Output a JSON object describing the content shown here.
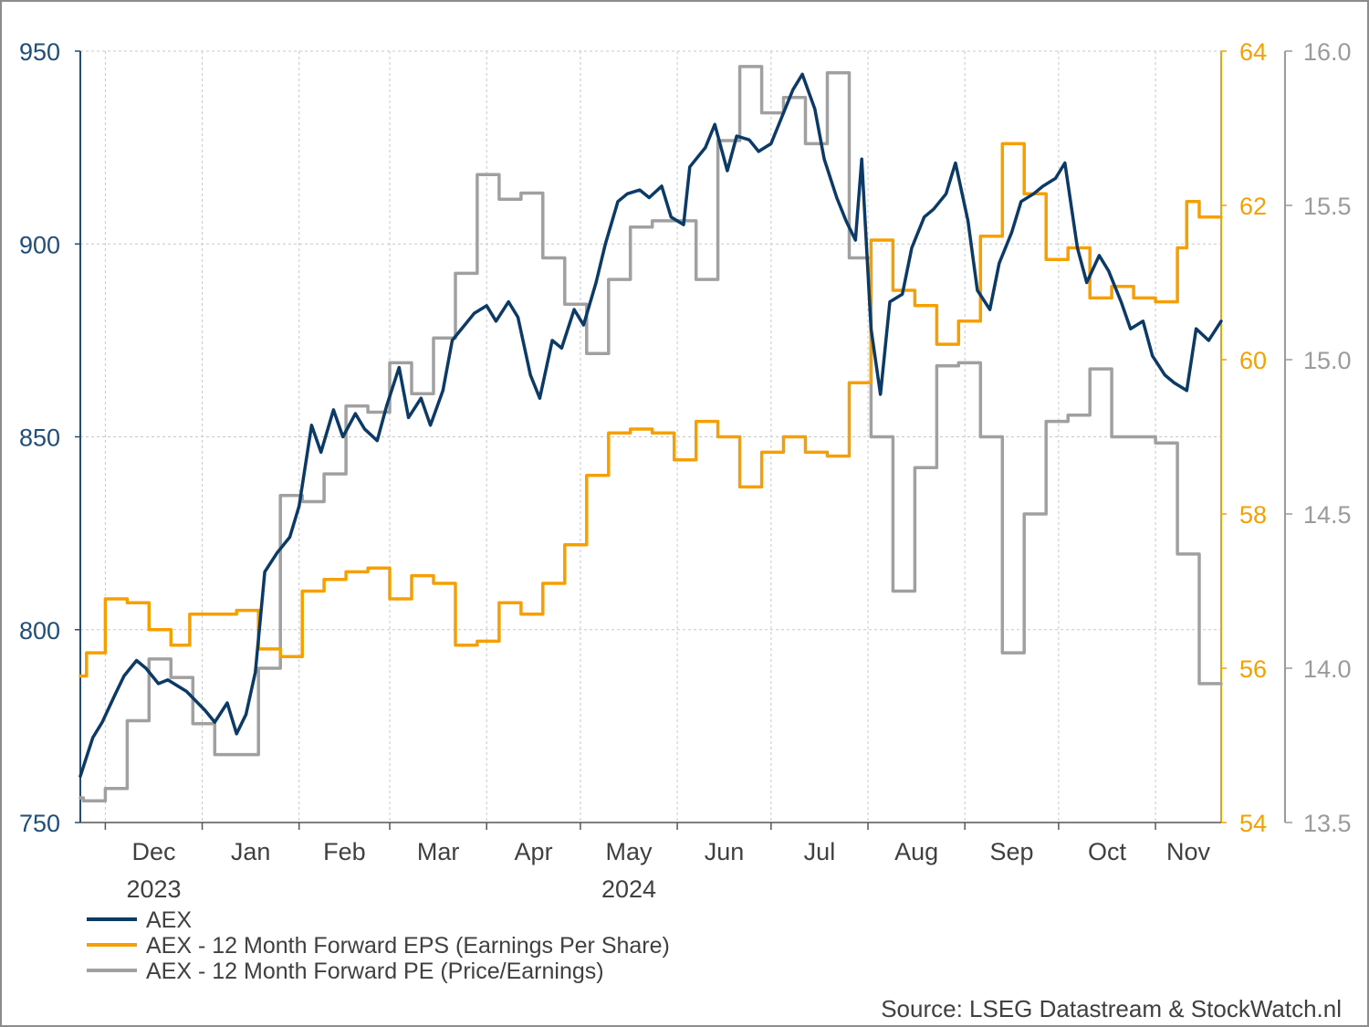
{
  "chart_data": {
    "type": "line",
    "x_start": "2023-11-23",
    "x_end": "2024-11-22",
    "month_ticks": [
      "Dec",
      "Jan",
      "Feb",
      "Mar",
      "Apr",
      "May",
      "Jun",
      "Jul",
      "Aug",
      "Sep",
      "Oct",
      "Nov"
    ],
    "year_labels": [
      "2023",
      "2024"
    ],
    "grid": true,
    "axes": {
      "left": {
        "ylim": [
          750,
          950
        ],
        "ticks": [
          "750",
          "800",
          "850",
          "900",
          "950"
        ],
        "color": "#1f4e79"
      },
      "right1": {
        "ylim": [
          54,
          64
        ],
        "ticks": [
          "54",
          "56",
          "58",
          "60",
          "62",
          "64"
        ],
        "color": "#f5a000"
      },
      "right2": {
        "ylim": [
          13.5,
          16.0
        ],
        "ticks": [
          "13.5",
          "14.0",
          "14.5",
          "15.0",
          "15.5",
          "16.0"
        ],
        "color": "#9b9b9b"
      }
    },
    "series": [
      {
        "name": "AEX",
        "axis": "left",
        "color": "#0b3a66",
        "points": [
          [
            "2023-11-23",
            762
          ],
          [
            "2023-11-27",
            772
          ],
          [
            "2023-11-30",
            776
          ],
          [
            "2023-12-04",
            783
          ],
          [
            "2023-12-07",
            788
          ],
          [
            "2023-12-11",
            792
          ],
          [
            "2023-12-14",
            790
          ],
          [
            "2023-12-18",
            786
          ],
          [
            "2023-12-21",
            787
          ],
          [
            "2023-12-27",
            784
          ],
          [
            "2024-01-02",
            779
          ],
          [
            "2024-01-05",
            776
          ],
          [
            "2024-01-09",
            781
          ],
          [
            "2024-01-12",
            773
          ],
          [
            "2024-01-15",
            778
          ],
          [
            "2024-01-18",
            789
          ],
          [
            "2024-01-21",
            815
          ],
          [
            "2024-01-25",
            820
          ],
          [
            "2024-01-29",
            824
          ],
          [
            "2024-02-01",
            832
          ],
          [
            "2024-02-05",
            853
          ],
          [
            "2024-02-08",
            846
          ],
          [
            "2024-02-12",
            857
          ],
          [
            "2024-02-15",
            850
          ],
          [
            "2024-02-19",
            856
          ],
          [
            "2024-02-22",
            852
          ],
          [
            "2024-02-26",
            849
          ],
          [
            "2024-02-29",
            858
          ],
          [
            "2024-03-04",
            868
          ],
          [
            "2024-03-07",
            855
          ],
          [
            "2024-03-11",
            860
          ],
          [
            "2024-03-14",
            853
          ],
          [
            "2024-03-18",
            862
          ],
          [
            "2024-03-21",
            875
          ],
          [
            "2024-03-25",
            879
          ],
          [
            "2024-03-28",
            882
          ],
          [
            "2024-04-01",
            884
          ],
          [
            "2024-04-04",
            880
          ],
          [
            "2024-04-08",
            885
          ],
          [
            "2024-04-11",
            881
          ],
          [
            "2024-04-15",
            866
          ],
          [
            "2024-04-18",
            860
          ],
          [
            "2024-04-22",
            875
          ],
          [
            "2024-04-25",
            873
          ],
          [
            "2024-04-29",
            883
          ],
          [
            "2024-05-02",
            879
          ],
          [
            "2024-05-06",
            890
          ],
          [
            "2024-05-09",
            900
          ],
          [
            "2024-05-13",
            911
          ],
          [
            "2024-05-16",
            913
          ],
          [
            "2024-05-20",
            914
          ],
          [
            "2024-05-23",
            912
          ],
          [
            "2024-05-27",
            915
          ],
          [
            "2024-05-30",
            907
          ],
          [
            "2024-06-03",
            905
          ],
          [
            "2024-06-05",
            920
          ],
          [
            "2024-06-10",
            925
          ],
          [
            "2024-06-13",
            931
          ],
          [
            "2024-06-17",
            919
          ],
          [
            "2024-06-20",
            928
          ],
          [
            "2024-06-24",
            927
          ],
          [
            "2024-06-27",
            924
          ],
          [
            "2024-07-01",
            926
          ],
          [
            "2024-07-04",
            932
          ],
          [
            "2024-07-08",
            940
          ],
          [
            "2024-07-11",
            944
          ],
          [
            "2024-07-15",
            935
          ],
          [
            "2024-07-18",
            922
          ],
          [
            "2024-07-22",
            912
          ],
          [
            "2024-07-25",
            906
          ],
          [
            "2024-07-28",
            901
          ],
          [
            "2024-07-30",
            922
          ],
          [
            "2024-08-02",
            878
          ],
          [
            "2024-08-05",
            861
          ],
          [
            "2024-08-08",
            885
          ],
          [
            "2024-08-12",
            887
          ],
          [
            "2024-08-15",
            899
          ],
          [
            "2024-08-19",
            907
          ],
          [
            "2024-08-22",
            909
          ],
          [
            "2024-08-26",
            913
          ],
          [
            "2024-08-29",
            921
          ],
          [
            "2024-09-02",
            906
          ],
          [
            "2024-09-05",
            888
          ],
          [
            "2024-09-09",
            883
          ],
          [
            "2024-09-12",
            895
          ],
          [
            "2024-09-16",
            903
          ],
          [
            "2024-09-19",
            911
          ],
          [
            "2024-09-23",
            913
          ],
          [
            "2024-09-26",
            915
          ],
          [
            "2024-09-30",
            917
          ],
          [
            "2024-10-03",
            921
          ],
          [
            "2024-10-07",
            899
          ],
          [
            "2024-10-10",
            890
          ],
          [
            "2024-10-14",
            897
          ],
          [
            "2024-10-17",
            893
          ],
          [
            "2024-10-21",
            885
          ],
          [
            "2024-10-24",
            878
          ],
          [
            "2024-10-28",
            880
          ],
          [
            "2024-10-31",
            871
          ],
          [
            "2024-11-04",
            866
          ],
          [
            "2024-11-07",
            864
          ],
          [
            "2024-11-11",
            862
          ],
          [
            "2024-11-14",
            878
          ],
          [
            "2024-11-18",
            875
          ],
          [
            "2024-11-22",
            880
          ]
        ]
      },
      {
        "name": "AEX - 12 Month Forward EPS (Earnings Per Share)",
        "axis": "right1",
        "color": "#f5a000",
        "step": true,
        "points": [
          [
            "2023-11-23",
            55.9
          ],
          [
            "2023-11-25",
            56.2
          ],
          [
            "2023-12-01",
            56.9
          ],
          [
            "2023-12-08",
            56.85
          ],
          [
            "2023-12-15",
            56.5
          ],
          [
            "2023-12-22",
            56.3
          ],
          [
            "2023-12-28",
            56.7
          ],
          [
            "2024-01-12",
            56.75
          ],
          [
            "2024-01-19",
            56.25
          ],
          [
            "2024-01-26",
            56.15
          ],
          [
            "2024-02-02",
            57.0
          ],
          [
            "2024-02-09",
            57.15
          ],
          [
            "2024-02-16",
            57.25
          ],
          [
            "2024-02-23",
            57.3
          ],
          [
            "2024-03-01",
            56.9
          ],
          [
            "2024-03-08",
            57.2
          ],
          [
            "2024-03-15",
            57.1
          ],
          [
            "2024-03-22",
            56.3
          ],
          [
            "2024-03-29",
            56.35
          ],
          [
            "2024-04-05",
            56.85
          ],
          [
            "2024-04-12",
            56.7
          ],
          [
            "2024-04-19",
            57.1
          ],
          [
            "2024-04-26",
            57.6
          ],
          [
            "2024-05-03",
            58.5
          ],
          [
            "2024-05-10",
            59.05
          ],
          [
            "2024-05-17",
            59.1
          ],
          [
            "2024-05-24",
            59.05
          ],
          [
            "2024-05-31",
            58.7
          ],
          [
            "2024-06-07",
            59.2
          ],
          [
            "2024-06-14",
            59.0
          ],
          [
            "2024-06-21",
            58.35
          ],
          [
            "2024-06-28",
            58.8
          ],
          [
            "2024-07-05",
            59.0
          ],
          [
            "2024-07-12",
            58.8
          ],
          [
            "2024-07-19",
            58.75
          ],
          [
            "2024-07-26",
            59.7
          ],
          [
            "2024-08-02",
            61.55
          ],
          [
            "2024-08-09",
            60.9
          ],
          [
            "2024-08-16",
            60.7
          ],
          [
            "2024-08-23",
            60.2
          ],
          [
            "2024-08-30",
            60.5
          ],
          [
            "2024-09-06",
            61.6
          ],
          [
            "2024-09-13",
            62.8
          ],
          [
            "2024-09-20",
            62.15
          ],
          [
            "2024-09-27",
            61.3
          ],
          [
            "2024-10-04",
            61.45
          ],
          [
            "2024-10-11",
            60.8
          ],
          [
            "2024-10-18",
            60.95
          ],
          [
            "2024-10-25",
            60.8
          ],
          [
            "2024-11-01",
            60.75
          ],
          [
            "2024-11-08",
            61.45
          ],
          [
            "2024-11-11",
            62.05
          ],
          [
            "2024-11-15",
            61.85
          ],
          [
            "2024-11-22",
            61.85
          ]
        ]
      },
      {
        "name": "AEX - 12 Month Forward PE (Price/Earnings)",
        "axis": "right2",
        "color": "#a0a0a0",
        "step": true,
        "points": [
          [
            "2023-11-23",
            13.58
          ],
          [
            "2023-11-24",
            13.57
          ],
          [
            "2023-12-01",
            13.61
          ],
          [
            "2023-12-08",
            13.83
          ],
          [
            "2023-12-15",
            14.03
          ],
          [
            "2023-12-22",
            13.97
          ],
          [
            "2023-12-29",
            13.82
          ],
          [
            "2024-01-05",
            13.72
          ],
          [
            "2024-01-19",
            14.0
          ],
          [
            "2024-01-26",
            14.56
          ],
          [
            "2024-02-02",
            14.54
          ],
          [
            "2024-02-09",
            14.63
          ],
          [
            "2024-02-16",
            14.85
          ],
          [
            "2024-02-23",
            14.83
          ],
          [
            "2024-03-01",
            14.99
          ],
          [
            "2024-03-08",
            14.89
          ],
          [
            "2024-03-15",
            15.07
          ],
          [
            "2024-03-22",
            15.28
          ],
          [
            "2024-03-29",
            15.6
          ],
          [
            "2024-04-05",
            15.52
          ],
          [
            "2024-04-12",
            15.54
          ],
          [
            "2024-04-19",
            15.33
          ],
          [
            "2024-04-26",
            15.18
          ],
          [
            "2024-05-03",
            15.02
          ],
          [
            "2024-05-10",
            15.26
          ],
          [
            "2024-05-17",
            15.43
          ],
          [
            "2024-05-24",
            15.45
          ],
          [
            "2024-05-31",
            15.45
          ],
          [
            "2024-06-07",
            15.26
          ],
          [
            "2024-06-14",
            15.71
          ],
          [
            "2024-06-21",
            15.95
          ],
          [
            "2024-06-28",
            15.8
          ],
          [
            "2024-07-05",
            15.85
          ],
          [
            "2024-07-12",
            15.7
          ],
          [
            "2024-07-19",
            15.93
          ],
          [
            "2024-07-26",
            15.33
          ],
          [
            "2024-08-02",
            14.75
          ],
          [
            "2024-08-09",
            14.25
          ],
          [
            "2024-08-16",
            14.65
          ],
          [
            "2024-08-23",
            14.98
          ],
          [
            "2024-08-30",
            14.99
          ],
          [
            "2024-09-06",
            14.75
          ],
          [
            "2024-09-13",
            14.05
          ],
          [
            "2024-09-20",
            14.5
          ],
          [
            "2024-09-27",
            14.8
          ],
          [
            "2024-10-04",
            14.82
          ],
          [
            "2024-10-11",
            14.97
          ],
          [
            "2024-10-18",
            14.75
          ],
          [
            "2024-10-25",
            14.75
          ],
          [
            "2024-11-01",
            14.73
          ],
          [
            "2024-11-08",
            14.37
          ],
          [
            "2024-11-15",
            13.95
          ],
          [
            "2024-11-22",
            13.95
          ]
        ]
      }
    ]
  },
  "source": "Source: LSEG Datastream & StockWatch.nl"
}
